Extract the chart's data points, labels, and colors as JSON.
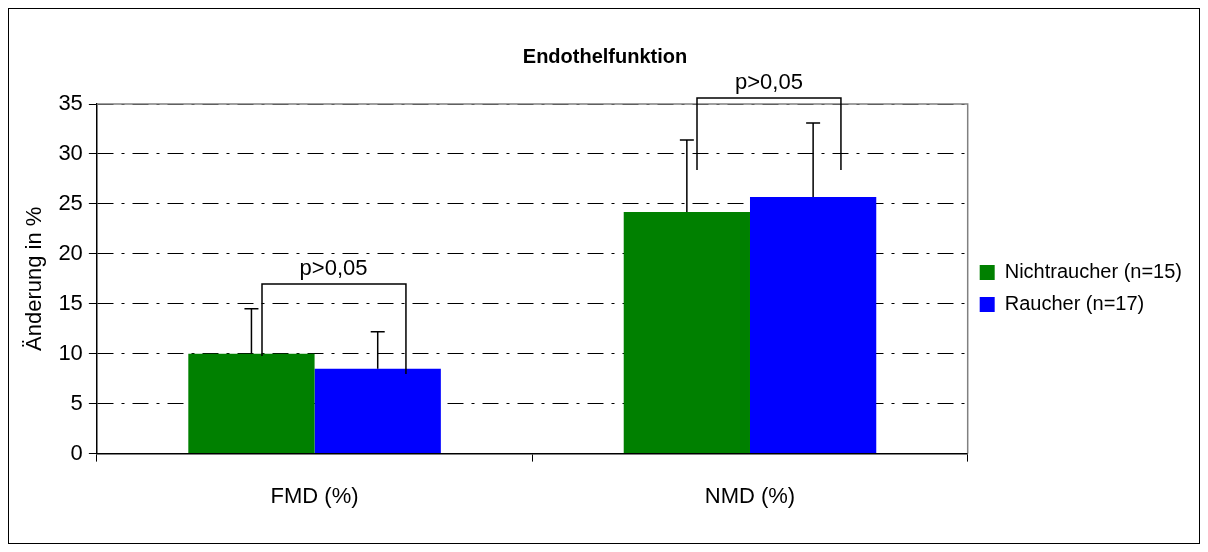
{
  "chart_data": {
    "type": "bar",
    "title": "Endothelfunktion",
    "ylabel": "Änderung in %",
    "categories": [
      "FMD (%)",
      "NMD (%)"
    ],
    "series": [
      {
        "name": "Nichtraucher (n=15)",
        "color": "#008000",
        "values": [
          10.0,
          24.2
        ],
        "errors": [
          [
            10.0,
            14.5
          ],
          [
            24.2,
            31.4
          ]
        ]
      },
      {
        "name": "Raucher (n=17)",
        "color": "#0000ff",
        "values": [
          8.5,
          25.7
        ],
        "errors": [
          [
            8.5,
            12.2
          ],
          [
            25.7,
            33.1
          ]
        ]
      }
    ],
    "ylim": [
      0,
      35
    ],
    "yticks": [
      0,
      5,
      10,
      15,
      20,
      25,
      30,
      35
    ],
    "grid": "y",
    "legend": "right",
    "annotations": [
      "p>0,05",
      "p>0,05"
    ]
  }
}
